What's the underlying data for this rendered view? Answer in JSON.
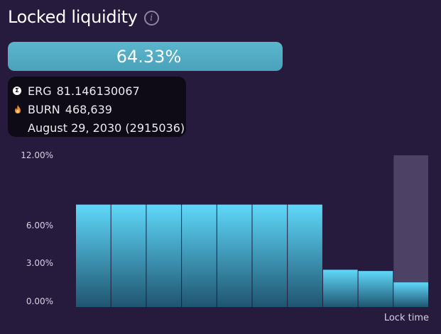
{
  "header": {
    "title": "Locked liquidity",
    "info_icon": "info-icon"
  },
  "progress": {
    "value_percent": 64.33,
    "label": "64.33%"
  },
  "tooltip": {
    "erg_icon": "erg-coin-icon",
    "erg_symbol": "ERG",
    "erg_amount": "81.146130067",
    "burn_icon": "burn-flame-icon",
    "burn_symbol": "BURN",
    "burn_amount": "468,639",
    "date": "August 29, 2030 (2915036)"
  },
  "colors": {
    "background": "#261a3d",
    "progress_fill": "#4fa9c1",
    "bar_top": "#5fd8fa",
    "bar_bottom": "#1f5570",
    "highlight": "#4d4265",
    "tooltip_bg": "#0e0a16"
  },
  "chart_data": {
    "type": "bar",
    "xlabel": "Lock time",
    "ylabel": "",
    "y_ticks": [
      "0.00%",
      "3.00%",
      "6.00%",
      "12.00%"
    ],
    "y_tick_values": [
      0,
      3,
      6,
      12
    ],
    "ylim": [
      0,
      12
    ],
    "values": [
      8.1,
      8.1,
      8.1,
      8.1,
      8.1,
      8.1,
      8.1,
      2.95,
      2.85,
      1.95
    ],
    "highlighted_index": 9,
    "highlight_value": 12
  }
}
